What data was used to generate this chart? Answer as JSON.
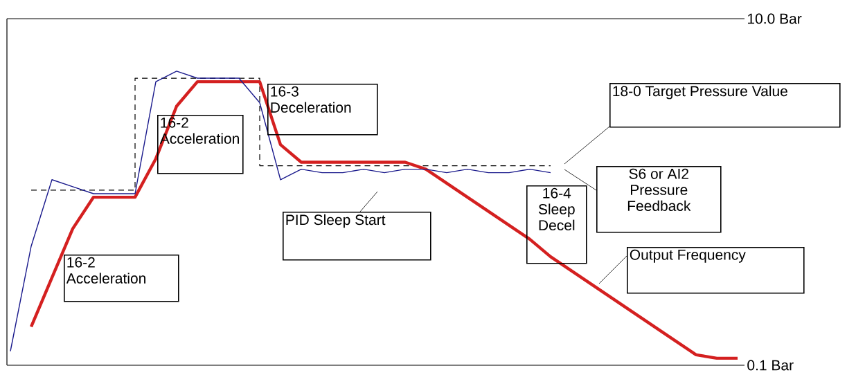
{
  "chart_data": {
    "type": "line",
    "categories": [
      null,
      null,
      null,
      null,
      null,
      null,
      null,
      null,
      null,
      null,
      null,
      null,
      null,
      null,
      null,
      null,
      null,
      null,
      null,
      null,
      null,
      null,
      null,
      null,
      null,
      null,
      null,
      null,
      null,
      null,
      null,
      null,
      null,
      null,
      null,
      null
    ],
    "series": [
      {
        "type": "step",
        "color": "#000000",
        "line_style": "dashed",
        "values": [
          null,
          5.1,
          5.1,
          5.1,
          5.1,
          5.1,
          8.3,
          8.3,
          8.3,
          8.3,
          8.3,
          8.3,
          5.8,
          5.8,
          5.8,
          5.8,
          5.8,
          5.8,
          5.8,
          5.8,
          5.8,
          5.8,
          5.8,
          5.8,
          5.8,
          5.8,
          5.8,
          null,
          null,
          null,
          null,
          null,
          null,
          null,
          null,
          null
        ]
      },
      {
        "color": "#d42020",
        "values": [
          null,
          1.2,
          2.6,
          4.0,
          4.9,
          4.9,
          4.9,
          6.0,
          7.5,
          8.2,
          8.2,
          8.2,
          8.2,
          6.4,
          5.9,
          5.9,
          5.9,
          5.9,
          5.9,
          5.9,
          5.7,
          5.3,
          4.9,
          4.5,
          4.1,
          3.7,
          3.2,
          2.8,
          2.4,
          2.0,
          1.6,
          1.2,
          0.8,
          0.4,
          0.3,
          0.3
        ]
      },
      {
        "color": "#1a1a8c",
        "values": [
          0.5,
          3.5,
          5.4,
          5.2,
          5.0,
          5.0,
          5.0,
          8.2,
          8.5,
          8.3,
          8.3,
          8.3,
          7.6,
          5.4,
          5.7,
          5.6,
          5.6,
          5.7,
          5.6,
          5.7,
          5.7,
          5.6,
          5.7,
          5.6,
          5.6,
          5.7,
          5.6,
          null,
          null,
          null,
          null,
          null,
          null,
          null,
          null,
          null
        ]
      }
    ],
    "ylim": [
      0.1,
      10.0
    ],
    "yticks": [
      {
        "value": 0.1,
        "label": "0.1 Bar"
      },
      {
        "value": 10.0,
        "label": "10.0 Bar"
      }
    ],
    "grid": "y",
    "tick_labels": "y",
    "annotations": [
      "16-2 Acceleration",
      "16-2 Acceleration",
      "16-3 Deceleration",
      "PID Sleep Start",
      "16-4 Sleep Decel",
      "18-0 Target Pressure Value",
      "S6 or AI2 Pressure Feedback",
      "Output Frequency"
    ]
  }
}
